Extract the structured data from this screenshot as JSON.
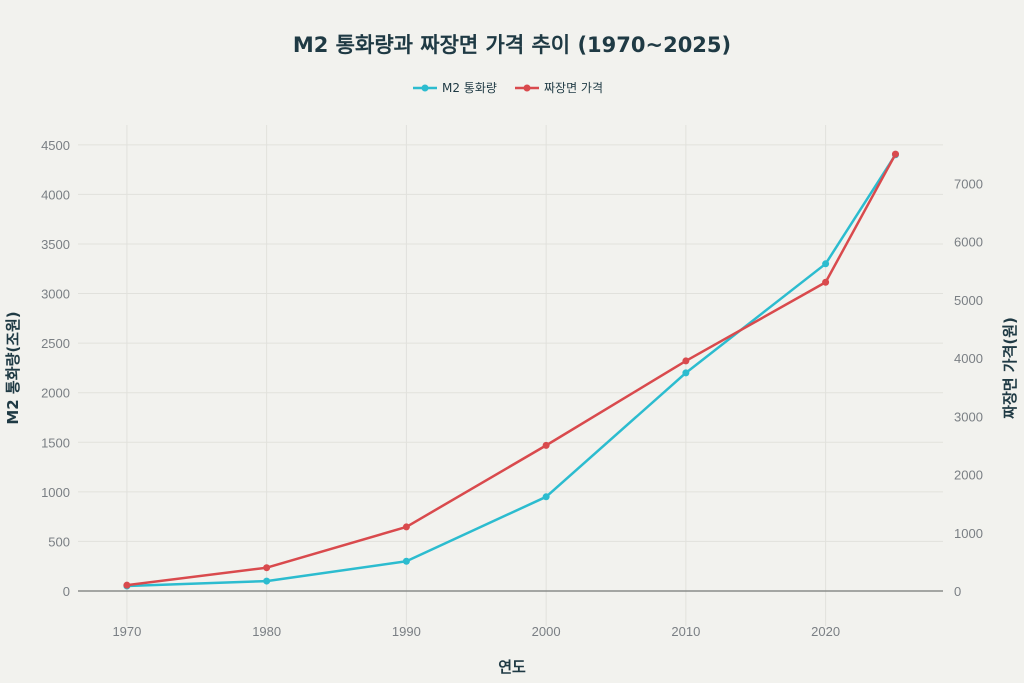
{
  "chart_data": {
    "type": "line",
    "title": "M2 통화량과 짜장면 가격 추이 (1970~2025)",
    "xlabel": "연도",
    "ylabel_left": "M2 통화량(조원)",
    "ylabel_right": "짜장면 가격(원)",
    "x": [
      1970,
      1980,
      1990,
      2000,
      2010,
      2020,
      2025
    ],
    "x_ticks": [
      1970,
      1980,
      1990,
      2000,
      2010,
      2020
    ],
    "y_left_ticks": [
      0,
      500,
      1000,
      1500,
      2000,
      2500,
      3000,
      3500,
      4000,
      4500
    ],
    "y_right_ticks": [
      0,
      1000,
      2000,
      3000,
      4000,
      5000,
      6000,
      7000
    ],
    "xlim": [
      1966.5,
      2028.4
    ],
    "ylim_left": [
      0,
      4700
    ],
    "ylim_right": [
      0,
      8000
    ],
    "grid": true,
    "legend_position": "top-center",
    "series": [
      {
        "name": "M2 통화량",
        "axis": "left",
        "color": "#2cbccf",
        "values": [
          50,
          100,
          300,
          950,
          2200,
          3300,
          4400
        ]
      },
      {
        "name": "짜장면 가격",
        "axis": "right",
        "color": "#d94a4d",
        "values": [
          100,
          400,
          1100,
          2500,
          3950,
          5300,
          7500
        ]
      }
    ]
  }
}
